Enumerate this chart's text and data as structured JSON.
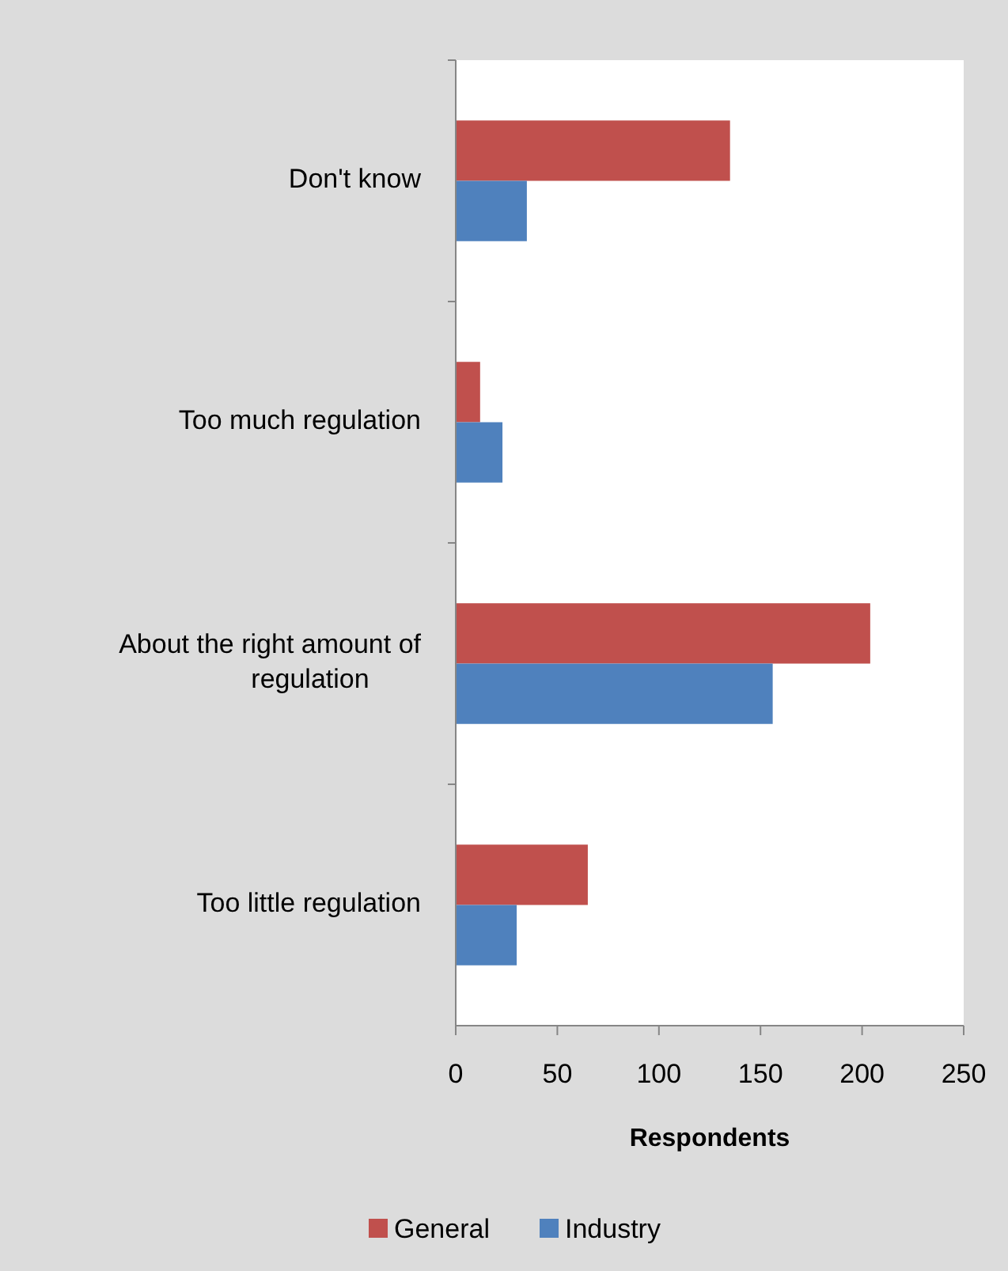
{
  "chart_data": {
    "type": "bar",
    "orientation": "horizontal",
    "xlabel": "Respondents",
    "categories": [
      "Don't know",
      "Too much regulation",
      "About the right amount of regulation",
      "Too little regulation"
    ],
    "series": [
      {
        "name": "General",
        "color": "#c0504d",
        "values": [
          135,
          12,
          204,
          65
        ]
      },
      {
        "name": "Industry",
        "color": "#4f81bd",
        "values": [
          35,
          23,
          156,
          30
        ]
      }
    ],
    "xlim": [
      0,
      250
    ],
    "xticks": [
      0,
      50,
      100,
      150,
      200,
      250
    ],
    "grid": false,
    "legend": "bottom"
  }
}
